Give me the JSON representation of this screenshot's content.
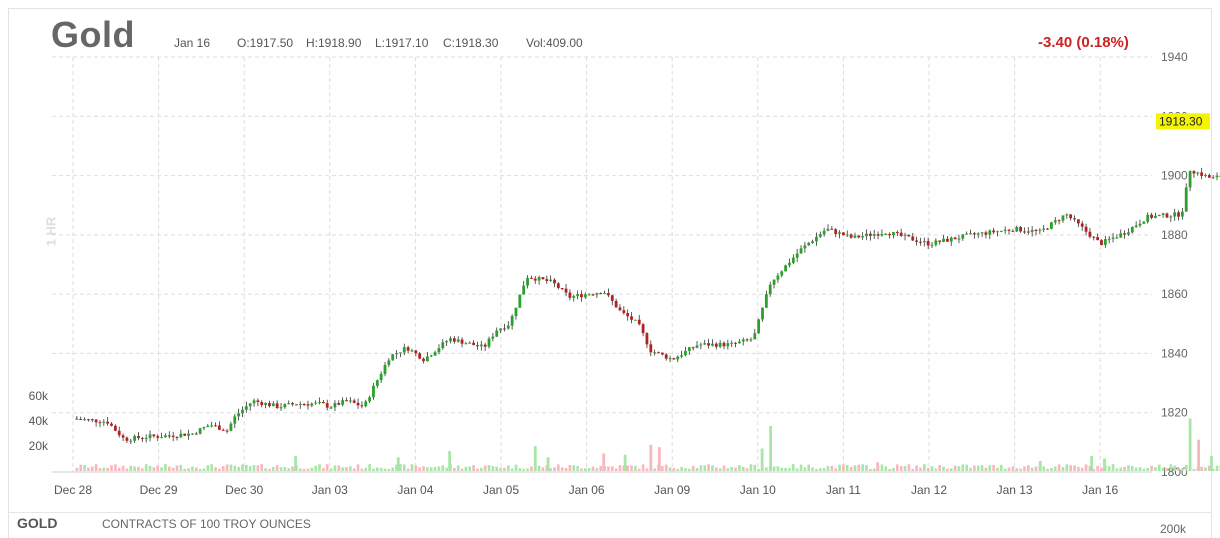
{
  "header": {
    "symbol": "Gold",
    "date": "Jan 16",
    "open": "O:1917.50",
    "high": "H:1918.90",
    "low": "L:1917.10",
    "close": "C:1918.30",
    "volume": "Vol:409.00",
    "change": "-3.40 (0.18%)"
  },
  "interval_label": "1 HR",
  "footer": {
    "symbol": "GOLD",
    "description": "CONTRACTS OF 100 TROY OUNCES",
    "volume_axis_label": "200k"
  },
  "colors": {
    "up": "#2ca02c",
    "down": "#b22222",
    "volume_up": "#a8e6a8",
    "volume_down": "#f7b7be",
    "change_negative": "#cc2222",
    "last_price_highlight": "#f5f500",
    "grid": "#dddddd"
  },
  "chart_data": {
    "type": "candlestick",
    "instrument": "Gold",
    "interval": "1 HR",
    "ylim": [
      1800,
      1940
    ],
    "y_ticks": [
      1800,
      1820,
      1840,
      1860,
      1880,
      1900,
      1920,
      1940
    ],
    "volume_ticks": [
      "20k",
      "40k",
      "60k"
    ],
    "x_ticks": [
      "Dec 28",
      "Dec 29",
      "Dec 30",
      "Jan 03",
      "Jan 04",
      "Jan 05",
      "Jan 06",
      "Jan 09",
      "Jan 10",
      "Jan 11",
      "Jan 12",
      "Jan 13",
      "Jan 16"
    ],
    "last_price": "1918.30",
    "close_path": [
      [
        0,
        1818
      ],
      [
        0.4,
        1817
      ],
      [
        0.6,
        1811
      ],
      [
        0.9,
        1812
      ],
      [
        1.0,
        1812
      ],
      [
        1.4,
        1813
      ],
      [
        1.6,
        1816
      ],
      [
        1.8,
        1814
      ],
      [
        1.9,
        1819
      ],
      [
        2.1,
        1824
      ],
      [
        2.4,
        1822
      ],
      [
        2.6,
        1823
      ],
      [
        2.9,
        1823
      ],
      [
        3.0,
        1822
      ],
      [
        3.2,
        1824
      ],
      [
        3.4,
        1822
      ],
      [
        3.5,
        1828
      ],
      [
        3.7,
        1839
      ],
      [
        3.9,
        1842
      ],
      [
        4.1,
        1838
      ],
      [
        4.4,
        1845
      ],
      [
        4.8,
        1842
      ],
      [
        4.95,
        1848
      ],
      [
        5.1,
        1850
      ],
      [
        5.3,
        1866
      ],
      [
        5.6,
        1864
      ],
      [
        5.8,
        1859
      ],
      [
        6.2,
        1861
      ],
      [
        6.4,
        1854
      ],
      [
        6.6,
        1850
      ],
      [
        6.75,
        1841
      ],
      [
        7.0,
        1838
      ],
      [
        7.3,
        1843
      ],
      [
        7.7,
        1843
      ],
      [
        7.95,
        1845
      ],
      [
        8.15,
        1864
      ],
      [
        8.5,
        1875
      ],
      [
        8.8,
        1882
      ],
      [
        9.1,
        1879
      ],
      [
        9.5,
        1881
      ],
      [
        10.0,
        1877
      ],
      [
        10.5,
        1880
      ],
      [
        11.0,
        1882
      ],
      [
        11.3,
        1881
      ],
      [
        11.6,
        1887
      ],
      [
        11.8,
        1882
      ],
      [
        12.0,
        1877
      ],
      [
        12.3,
        1881
      ],
      [
        12.55,
        1886
      ],
      [
        12.95,
        1887
      ],
      [
        13.05,
        1902
      ],
      [
        13.3,
        1899
      ],
      [
        13.6,
        1901
      ],
      [
        13.9,
        1900
      ],
      [
        14.1,
        1902
      ],
      [
        14.3,
        1910
      ],
      [
        14.45,
        1903
      ],
      [
        14.7,
        1915
      ],
      [
        14.9,
        1924
      ],
      [
        15.1,
        1922
      ],
      [
        15.25,
        1930
      ],
      [
        15.5,
        1918
      ],
      [
        15.7,
        1916
      ],
      [
        16.0,
        1918
      ],
      [
        16.2,
        1918.3
      ]
    ],
    "high_volume_bars": [
      [
        2.6,
        12,
        "up"
      ],
      [
        3.8,
        11,
        "up"
      ],
      [
        4.4,
        16,
        "up"
      ],
      [
        5.4,
        20,
        "up"
      ],
      [
        5.55,
        11,
        "up"
      ],
      [
        6.2,
        14,
        "down"
      ],
      [
        6.45,
        13,
        "up"
      ],
      [
        6.75,
        21,
        "down"
      ],
      [
        6.85,
        19,
        "down"
      ],
      [
        8.05,
        18,
        "up"
      ],
      [
        8.15,
        36,
        "up"
      ],
      [
        9.4,
        7,
        "down"
      ],
      [
        11.3,
        8,
        "up"
      ],
      [
        11.9,
        12,
        "up"
      ],
      [
        12.05,
        10,
        "up"
      ],
      [
        13.05,
        42,
        "up"
      ],
      [
        13.15,
        25,
        "down"
      ],
      [
        13.3,
        12,
        "up"
      ],
      [
        14.3,
        13,
        "up"
      ],
      [
        14.55,
        13,
        "up"
      ],
      [
        14.7,
        20,
        "up"
      ],
      [
        14.8,
        20,
        "up"
      ],
      [
        15.0,
        12,
        "up"
      ],
      [
        15.1,
        9,
        "up"
      ]
    ]
  }
}
